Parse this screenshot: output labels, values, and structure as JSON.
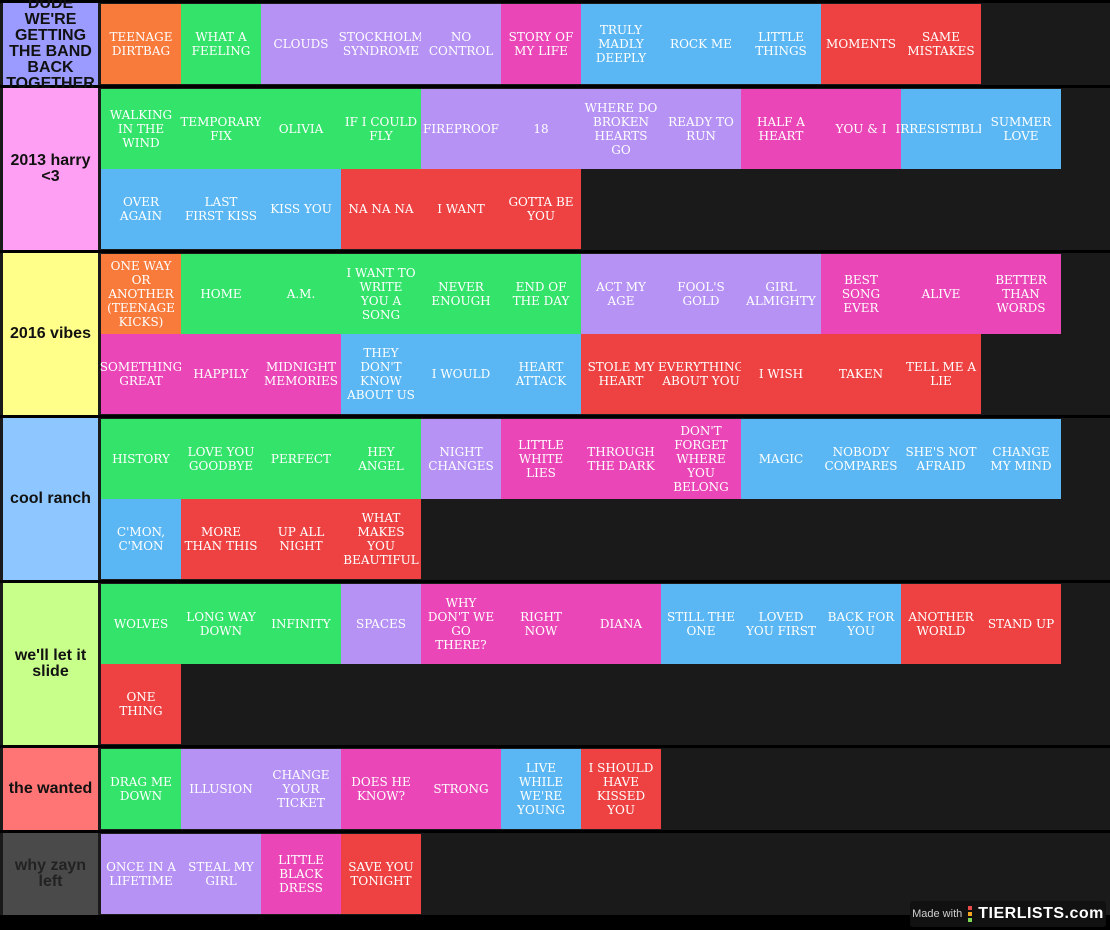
{
  "colors": {
    "orange": "#f97b3c",
    "green": "#33e36a",
    "lavender": "#b692f5",
    "pink": "#ea46b7",
    "blue": "#5ab7f3",
    "red": "#ee4242"
  },
  "tiers": [
    {
      "label": "DUDE WE'RE GETTING THE BAND BACK TOGETHER",
      "color": "#9b9bff",
      "items": [
        {
          "text": "TEENAGE DIRTBAG",
          "color": "orange"
        },
        {
          "text": "WHAT A FEELING",
          "color": "green"
        },
        {
          "text": "CLOUDS",
          "color": "lavender"
        },
        {
          "text": "STOCKHOLM SYNDROME",
          "color": "lavender"
        },
        {
          "text": "NO CONTROL",
          "color": "lavender"
        },
        {
          "text": "STORY OF MY LIFE",
          "color": "pink"
        },
        {
          "text": "TRULY MADLY DEEPLY",
          "color": "blue"
        },
        {
          "text": "ROCK ME",
          "color": "blue"
        },
        {
          "text": "LITTLE THINGS",
          "color": "blue"
        },
        {
          "text": "MOMENTS",
          "color": "red"
        },
        {
          "text": "SAME MISTAKES",
          "color": "red"
        }
      ]
    },
    {
      "label": "2013 harry <3",
      "color": "#ff9ff3",
      "items": [
        {
          "text": "WALKING IN THE WIND",
          "color": "green"
        },
        {
          "text": "TEMPORARY FIX",
          "color": "green"
        },
        {
          "text": "OLIVIA",
          "color": "green"
        },
        {
          "text": "IF I COULD FLY",
          "color": "green"
        },
        {
          "text": "FIREPROOF",
          "color": "lavender"
        },
        {
          "text": "18",
          "color": "lavender"
        },
        {
          "text": "WHERE DO BROKEN HEARTS GO",
          "color": "lavender"
        },
        {
          "text": "READY TO RUN",
          "color": "lavender"
        },
        {
          "text": "HALF A HEART",
          "color": "pink"
        },
        {
          "text": "YOU & I",
          "color": "pink"
        },
        {
          "text": "IRRESISTIBLE",
          "color": "blue"
        },
        {
          "text": "SUMMER LOVE",
          "color": "blue"
        },
        {
          "text": "OVER AGAIN",
          "color": "blue"
        },
        {
          "text": "LAST FIRST KISS",
          "color": "blue"
        },
        {
          "text": "KISS YOU",
          "color": "blue"
        },
        {
          "text": "NA NA NA",
          "color": "red"
        },
        {
          "text": "I WANT",
          "color": "red"
        },
        {
          "text": "GOTTA BE YOU",
          "color": "red"
        }
      ]
    },
    {
      "label": "2016 vibes",
      "color": "#ffff8a",
      "items": [
        {
          "text": "ONE WAY OR ANOTHER (TEENAGE KICKS)",
          "color": "orange"
        },
        {
          "text": "HOME",
          "color": "green"
        },
        {
          "text": "A.M.",
          "color": "green"
        },
        {
          "text": "I WANT TO WRITE YOU A SONG",
          "color": "green"
        },
        {
          "text": "NEVER ENOUGH",
          "color": "green"
        },
        {
          "text": "END OF THE DAY",
          "color": "green"
        },
        {
          "text": "ACT MY AGE",
          "color": "lavender"
        },
        {
          "text": "FOOL'S GOLD",
          "color": "lavender"
        },
        {
          "text": "GIRL ALMIGHTY",
          "color": "lavender"
        },
        {
          "text": "BEST SONG EVER",
          "color": "pink"
        },
        {
          "text": "ALIVE",
          "color": "pink"
        },
        {
          "text": "BETTER THAN WORDS",
          "color": "pink"
        },
        {
          "text": "SOMETHING GREAT",
          "color": "pink"
        },
        {
          "text": "HAPPILY",
          "color": "pink"
        },
        {
          "text": "MIDNIGHT MEMORIES",
          "color": "pink"
        },
        {
          "text": "THEY DON'T KNOW ABOUT US",
          "color": "blue"
        },
        {
          "text": "I WOULD",
          "color": "blue"
        },
        {
          "text": "HEART ATTACK",
          "color": "blue"
        },
        {
          "text": "STOLE MY HEART",
          "color": "red"
        },
        {
          "text": "EVERYTHING ABOUT YOU",
          "color": "red"
        },
        {
          "text": "I WISH",
          "color": "red"
        },
        {
          "text": "TAKEN",
          "color": "red"
        },
        {
          "text": "TELL ME A LIE",
          "color": "red"
        }
      ]
    },
    {
      "label": "cool ranch",
      "color": "#8ec7ff",
      "items": [
        {
          "text": "HISTORY",
          "color": "green"
        },
        {
          "text": "LOVE YOU GOODBYE",
          "color": "green"
        },
        {
          "text": "PERFECT",
          "color": "green"
        },
        {
          "text": "HEY ANGEL",
          "color": "green"
        },
        {
          "text": "NIGHT CHANGES",
          "color": "lavender"
        },
        {
          "text": "LITTLE WHITE LIES",
          "color": "pink"
        },
        {
          "text": "THROUGH THE DARK",
          "color": "pink"
        },
        {
          "text": "DON'T FORGET WHERE YOU BELONG",
          "color": "pink"
        },
        {
          "text": "MAGIC",
          "color": "blue"
        },
        {
          "text": "NOBODY COMPARES",
          "color": "blue"
        },
        {
          "text": "SHE'S NOT AFRAID",
          "color": "blue"
        },
        {
          "text": "CHANGE MY MIND",
          "color": "blue"
        },
        {
          "text": "C'MON, C'MON",
          "color": "blue"
        },
        {
          "text": "MORE THAN THIS",
          "color": "red"
        },
        {
          "text": "UP ALL NIGHT",
          "color": "red"
        },
        {
          "text": "WHAT MAKES YOU BEAUTIFUL",
          "color": "red"
        }
      ]
    },
    {
      "label": "we'll let it slide",
      "color": "#c8ff8a",
      "items": [
        {
          "text": "WOLVES",
          "color": "green"
        },
        {
          "text": "LONG WAY DOWN",
          "color": "green"
        },
        {
          "text": "INFINITY",
          "color": "green"
        },
        {
          "text": "SPACES",
          "color": "lavender"
        },
        {
          "text": "WHY DON'T WE GO THERE?",
          "color": "pink"
        },
        {
          "text": "RIGHT NOW",
          "color": "pink"
        },
        {
          "text": "DIANA",
          "color": "pink"
        },
        {
          "text": "STILL THE ONE",
          "color": "blue"
        },
        {
          "text": "LOVED YOU FIRST",
          "color": "blue"
        },
        {
          "text": "BACK FOR YOU",
          "color": "blue"
        },
        {
          "text": "ANOTHER WORLD",
          "color": "red"
        },
        {
          "text": "STAND UP",
          "color": "red"
        },
        {
          "text": "ONE THING",
          "color": "red"
        }
      ]
    },
    {
      "label": "the wanted",
      "color": "#ff7575",
      "items": [
        {
          "text": "DRAG ME DOWN",
          "color": "green"
        },
        {
          "text": "ILLUSION",
          "color": "lavender"
        },
        {
          "text": "CHANGE YOUR TICKET",
          "color": "lavender"
        },
        {
          "text": "DOES HE KNOW?",
          "color": "pink"
        },
        {
          "text": "STRONG",
          "color": "pink"
        },
        {
          "text": "LIVE WHILE WE'RE YOUNG",
          "color": "blue"
        },
        {
          "text": "I SHOULD HAVE KISSED YOU",
          "color": "red"
        }
      ]
    },
    {
      "label": "why zayn left",
      "color": "#4a4a4a",
      "items": [
        {
          "text": "ONCE IN A LIFETIME",
          "color": "lavender"
        },
        {
          "text": "STEAL MY GIRL",
          "color": "lavender"
        },
        {
          "text": "LITTLE BLACK DRESS",
          "color": "pink"
        },
        {
          "text": "SAVE YOU TONIGHT",
          "color": "red"
        }
      ]
    }
  ],
  "footer": {
    "made_with": "Made with",
    "brand": "TIERLISTS.com",
    "logo_icon": "tierlists-logo-icon"
  }
}
